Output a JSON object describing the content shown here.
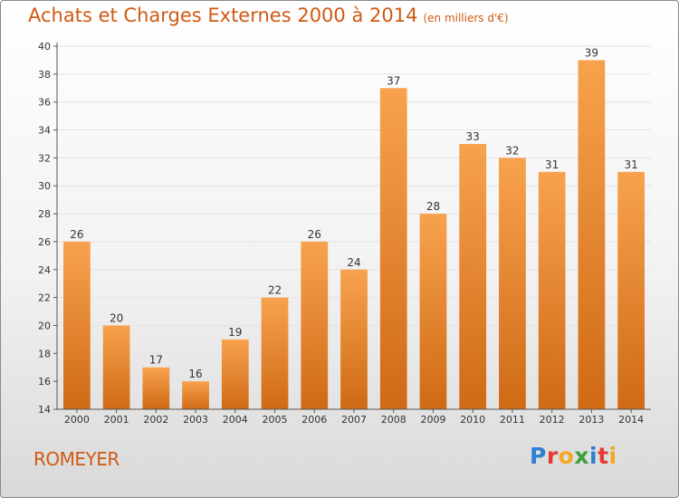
{
  "title": "Achats et Charges Externes 2000 à 2014",
  "title_unit": "(en milliers d'€)",
  "commune": "ROMEYER",
  "logo": {
    "text": "Proxiti",
    "letters": [
      {
        "ch": "P",
        "color": "#2e7fd0"
      },
      {
        "ch": "r",
        "color": "#e53935"
      },
      {
        "ch": "o",
        "color": "#f5a623"
      },
      {
        "ch": "x",
        "color": "#3aa13a"
      },
      {
        "ch": "i",
        "color": "#2e7fd0"
      },
      {
        "ch": "t",
        "color": "#e53935"
      },
      {
        "ch": "i",
        "color": "#f5a623"
      }
    ]
  },
  "colors": {
    "bar_top": "#f8a24e",
    "bar_bottom": "#cf6a15",
    "title": "#d05a12",
    "axis": "#555555",
    "grid": "#e2e2e2"
  },
  "chart_data": {
    "type": "bar",
    "categories": [
      "2000",
      "2001",
      "2002",
      "2003",
      "2004",
      "2005",
      "2006",
      "2007",
      "2008",
      "2009",
      "2010",
      "2011",
      "2012",
      "2013",
      "2014"
    ],
    "values": [
      26,
      20,
      17,
      16,
      19,
      22,
      26,
      24,
      37,
      28,
      33,
      32,
      31,
      39,
      31
    ],
    "ylim": [
      14,
      40
    ],
    "yticks": [
      14,
      16,
      18,
      20,
      22,
      24,
      26,
      28,
      30,
      32,
      34,
      36,
      38,
      40
    ],
    "grid": true,
    "legend": "none"
  }
}
